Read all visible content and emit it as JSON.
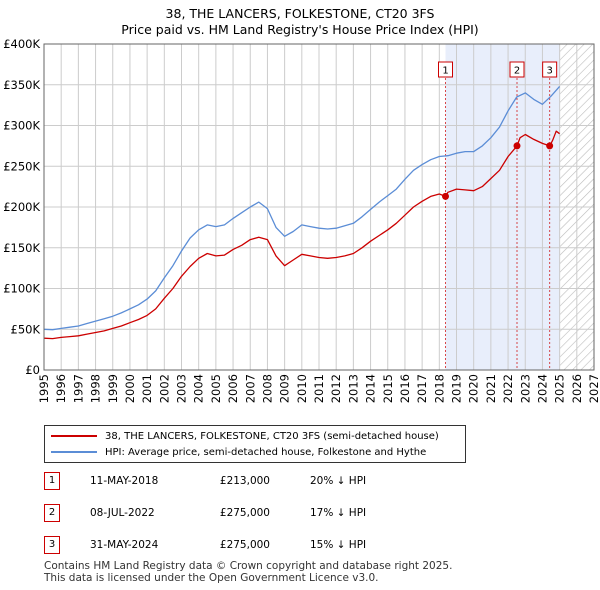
{
  "title_line1": "38, THE LANCERS, FOLKESTONE, CT20 3FS",
  "title_line2": "Price paid vs. HM Land Registry's House Price Index (HPI)",
  "colors": {
    "property": "#cc0000",
    "hpi": "#5b8dd6",
    "shade": "#e8eefb",
    "grid": "#cccccc"
  },
  "chart_data": {
    "type": "line",
    "title": "38, THE LANCERS, FOLKESTONE, CT20 3FS — Price paid vs. HM Land Registry's House Price Index (HPI)",
    "xlim": [
      1995,
      2027
    ],
    "ylim": [
      0,
      400000
    ],
    "x_ticks": [
      1995,
      1996,
      1997,
      1998,
      1999,
      2000,
      2001,
      2002,
      2003,
      2004,
      2005,
      2006,
      2007,
      2008,
      2009,
      2010,
      2011,
      2012,
      2013,
      2014,
      2015,
      2016,
      2017,
      2018,
      2019,
      2020,
      2021,
      2022,
      2023,
      2024,
      2025,
      2026,
      2027
    ],
    "y_ticks": [
      0,
      50000,
      100000,
      150000,
      200000,
      250000,
      300000,
      350000,
      400000
    ],
    "y_tick_labels": [
      "£0",
      "£50K",
      "£100K",
      "£150K",
      "£200K",
      "£250K",
      "£300K",
      "£350K",
      "£400K"
    ],
    "shaded_span": [
      2018.36,
      2025.0
    ],
    "future_hatch_from": 2025.0,
    "series": [
      {
        "name": "38, THE LANCERS, FOLKESTONE, CT20 3FS (semi-detached house)",
        "x": [
          1995.0,
          1995.5,
          1996.0,
          1996.5,
          1997.0,
          1997.5,
          1998.0,
          1998.5,
          1999.0,
          1999.5,
          2000.0,
          2000.5,
          2001.0,
          2001.5,
          2002.0,
          2002.5,
          2003.0,
          2003.5,
          2004.0,
          2004.5,
          2005.0,
          2005.5,
          2006.0,
          2006.5,
          2007.0,
          2007.5,
          2008.0,
          2008.5,
          2009.0,
          2009.5,
          2010.0,
          2010.5,
          2011.0,
          2011.5,
          2012.0,
          2012.5,
          2013.0,
          2013.5,
          2014.0,
          2014.5,
          2015.0,
          2015.5,
          2016.0,
          2016.5,
          2017.0,
          2017.5,
          2018.0,
          2018.36,
          2018.5,
          2019.0,
          2019.5,
          2020.0,
          2020.5,
          2021.0,
          2021.5,
          2022.0,
          2022.52,
          2022.7,
          2023.0,
          2023.5,
          2024.0,
          2024.42,
          2024.6,
          2024.8,
          2025.0
        ],
        "values": [
          39000,
          38500,
          40000,
          41000,
          42000,
          44000,
          46000,
          48000,
          51000,
          54000,
          58000,
          62000,
          67000,
          75000,
          88000,
          100000,
          115000,
          127000,
          137000,
          143000,
          140000,
          141000,
          148000,
          153000,
          160000,
          163000,
          160000,
          140000,
          128000,
          135000,
          142000,
          140000,
          138000,
          137000,
          138000,
          140000,
          143000,
          150000,
          158000,
          165000,
          172000,
          180000,
          190000,
          200000,
          207000,
          213000,
          216000,
          213000,
          218000,
          222000,
          221000,
          220000,
          225000,
          235000,
          245000,
          262000,
          275000,
          285000,
          289000,
          283000,
          278000,
          275000,
          282000,
          293000,
          290000
        ]
      },
      {
        "name": "HPI: Average price, semi-detached house, Folkestone and Hythe",
        "x": [
          1995.0,
          1995.5,
          1996.0,
          1996.5,
          1997.0,
          1997.5,
          1998.0,
          1998.5,
          1999.0,
          1999.5,
          2000.0,
          2000.5,
          2001.0,
          2001.5,
          2002.0,
          2002.5,
          2003.0,
          2003.5,
          2004.0,
          2004.5,
          2005.0,
          2005.5,
          2006.0,
          2006.5,
          2007.0,
          2007.5,
          2008.0,
          2008.5,
          2009.0,
          2009.5,
          2010.0,
          2010.5,
          2011.0,
          2011.5,
          2012.0,
          2012.5,
          2013.0,
          2013.5,
          2014.0,
          2014.5,
          2015.0,
          2015.5,
          2016.0,
          2016.5,
          2017.0,
          2017.5,
          2018.0,
          2018.5,
          2019.0,
          2019.5,
          2020.0,
          2020.5,
          2021.0,
          2021.5,
          2022.0,
          2022.5,
          2023.0,
          2023.5,
          2024.0,
          2024.5,
          2025.0
        ],
        "values": [
          50000,
          49500,
          51000,
          52500,
          54000,
          57000,
          60000,
          63000,
          66000,
          70000,
          75000,
          80000,
          87000,
          97000,
          113000,
          128000,
          146000,
          162000,
          172000,
          178000,
          176000,
          178000,
          186000,
          193000,
          200000,
          206000,
          198000,
          175000,
          164000,
          170000,
          178000,
          176000,
          174000,
          173000,
          174000,
          177000,
          180000,
          188000,
          197000,
          206000,
          214000,
          222000,
          234000,
          245000,
          252000,
          258000,
          262000,
          263000,
          266000,
          268000,
          268000,
          275000,
          285000,
          298000,
          318000,
          335000,
          340000,
          332000,
          326000,
          336000,
          348000
        ]
      }
    ],
    "annotations": [
      {
        "label": "1",
        "x": 2018.36,
        "y": 213000
      },
      {
        "label": "2",
        "x": 2022.52,
        "y": 275000
      },
      {
        "label": "3",
        "x": 2024.42,
        "y": 275000
      }
    ]
  },
  "legend": {
    "property_label": "38, THE LANCERS, FOLKESTONE, CT20 3FS (semi-detached house)",
    "hpi_label": "HPI: Average price, semi-detached house, Folkestone and Hythe"
  },
  "sales": [
    {
      "num": "1",
      "date": "11-MAY-2018",
      "price": "£213,000",
      "hpi": "20% ↓ HPI"
    },
    {
      "num": "2",
      "date": "08-JUL-2022",
      "price": "£275,000",
      "hpi": "17% ↓ HPI"
    },
    {
      "num": "3",
      "date": "31-MAY-2024",
      "price": "£275,000",
      "hpi": "15% ↓ HPI"
    }
  ],
  "footer": {
    "line1": "Contains HM Land Registry data © Crown copyright and database right 2025.",
    "line2": "This data is licensed under the Open Government Licence v3.0."
  }
}
